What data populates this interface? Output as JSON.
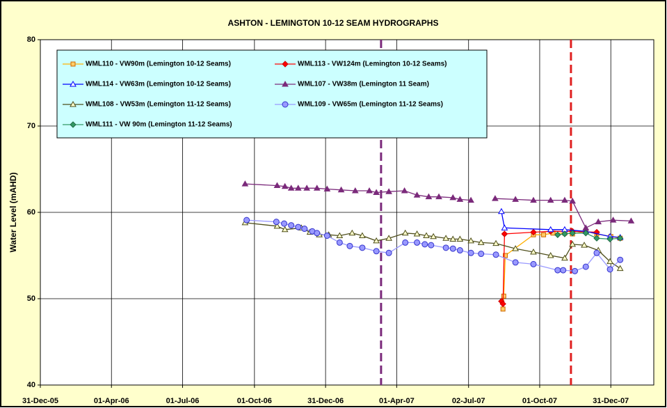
{
  "chart_data": {
    "type": "line",
    "title": "ASHTON - LEMINGTON 10-12 SEAM HYDROGRAPHS",
    "y_label": "Water Level (mAHD)",
    "xlim": [
      "2005-12-31",
      "2008-02-24"
    ],
    "xticks": [
      {
        "value": "2005-12-31",
        "label": "31-Dec-05"
      },
      {
        "value": "2006-04-01",
        "label": "01-Apr-06"
      },
      {
        "value": "2006-07-01",
        "label": "01-Jul-06"
      },
      {
        "value": "2006-10-01",
        "label": "01-Oct-06"
      },
      {
        "value": "2006-12-31",
        "label": "31-Dec-06"
      },
      {
        "value": "2007-04-01",
        "label": "01-Apr-07"
      },
      {
        "value": "2007-07-02",
        "label": "02-Jul-07"
      },
      {
        "value": "2007-10-01",
        "label": "01-Oct-07"
      },
      {
        "value": "2007-12-31",
        "label": "31-Dec-07"
      }
    ],
    "ylim": [
      40,
      80
    ],
    "yticks": [
      40,
      50,
      60,
      70,
      80
    ],
    "grid": true,
    "reference_lines": [
      {
        "x": "2007-03-12",
        "color": "#7b2a7b"
      },
      {
        "x": "2007-11-10",
        "color": "#e02020"
      }
    ],
    "series": [
      {
        "name": "WML110 - VW90m (Lemington 10-12 Seams)",
        "color": "#ffb000",
        "marker": "square",
        "marker_fill": "#ffcc66",
        "marker_stroke": "#cc6600",
        "x": [
          "2007-08-15",
          "2007-08-16",
          "2007-08-18",
          "2007-09-23",
          "2007-10-06",
          "2007-10-18",
          "2007-11-02",
          "2007-11-12",
          "2007-11-29",
          "2007-12-13",
          "2007-12-31",
          "2008-01-12"
        ],
        "values": [
          48.8,
          50.3,
          55.0,
          57.4,
          57.4,
          57.6,
          57.6,
          57.5,
          57.8,
          57.5,
          57.2,
          57.0
        ]
      },
      {
        "name": "WML113 - VW124m (Lemington 10-12 Seams)",
        "color": "#ff0000",
        "marker": "diamond",
        "marker_fill": "#ff0000",
        "marker_stroke": "#cc0000",
        "x": [
          "2007-08-13",
          "2007-08-15",
          "2007-08-17",
          "2007-09-23",
          "2007-10-15",
          "2007-11-12",
          "2007-12-13"
        ],
        "values": [
          49.7,
          49.4,
          57.5,
          57.7,
          57.8,
          57.8,
          57.7
        ]
      },
      {
        "name": "WML114 - VW63m (Lemington 10-12 Seams)",
        "color": "#0000ff",
        "marker": "triangle-open",
        "marker_fill": "#ffffff",
        "marker_stroke": "#0000ff",
        "x": [
          "2007-08-13",
          "2007-08-17",
          "2007-10-15",
          "2007-11-02",
          "2007-11-29",
          "2007-12-30",
          "2008-01-12"
        ],
        "values": [
          60.1,
          58.2,
          58.0,
          58.0,
          57.8,
          57.2,
          57.1
        ]
      },
      {
        "name": "WML107 - VW38m (Lemington 11 Seam)",
        "color": "#7b2a7b",
        "marker": "triangle",
        "marker_fill": "#7b2a7b",
        "marker_stroke": "#7b2a7b",
        "x": [
          "2006-09-19",
          "2006-10-30",
          "2006-11-09",
          "2006-11-17",
          "2006-11-26",
          "2006-12-07",
          "2006-12-20",
          "2007-01-02",
          "2007-01-20",
          "2007-02-07",
          "2007-02-25",
          "2007-03-06",
          "2007-03-22",
          "2007-04-11",
          "2007-04-27",
          "2007-05-12",
          "2007-05-25",
          "2007-06-12",
          "2007-06-21",
          "2007-07-05",
          "2007-07-20",
          "2007-08-05",
          "2007-08-31",
          "2007-09-23",
          "2007-10-15",
          "2007-11-02",
          "2007-11-12",
          "2007-11-29",
          "2007-12-15",
          "2008-01-03",
          "2008-01-26"
        ],
        "values": [
          63.3,
          63.1,
          63.0,
          62.8,
          62.8,
          62.8,
          62.8,
          62.7,
          62.6,
          62.5,
          62.5,
          62.3,
          62.4,
          62.5,
          62.0,
          61.8,
          61.8,
          61.7,
          61.5,
          61.4,
          null,
          61.6,
          61.5,
          61.4,
          61.4,
          61.4,
          61.3,
          58.2,
          58.9,
          59.1,
          59.0
        ]
      },
      {
        "name": "WML108 - VW53m (Lemington 11-12 Seams)",
        "color": "#4d4d1a",
        "marker": "triangle-open",
        "marker_fill": "#ffffcc",
        "marker_stroke": "#4d4d1a",
        "x": [
          "2006-09-19",
          "2006-10-30",
          "2006-11-09",
          "2006-11-30",
          "2006-12-11",
          "2006-12-23",
          "2007-01-04",
          "2007-01-18",
          "2007-02-03",
          "2007-02-16",
          "2007-03-06",
          "2007-03-22",
          "2007-04-12",
          "2007-04-27",
          "2007-05-09",
          "2007-05-18",
          "2007-06-03",
          "2007-06-12",
          "2007-06-21",
          "2007-07-05",
          "2007-07-18",
          "2007-08-06",
          "2007-08-31",
          "2007-09-23",
          "2007-10-15",
          "2007-11-02",
          "2007-11-12",
          "2007-11-27",
          "2007-12-15",
          "2007-12-30",
          "2008-01-12"
        ],
        "values": [
          58.8,
          58.4,
          58.0,
          58.2,
          57.7,
          57.4,
          57.4,
          57.3,
          57.6,
          57.3,
          56.7,
          57.0,
          57.6,
          57.5,
          57.3,
          57.2,
          57.0,
          56.9,
          56.9,
          56.7,
          56.5,
          56.4,
          55.8,
          55.4,
          55.0,
          54.7,
          56.3,
          56.2,
          55.6,
          54.3,
          53.5
        ]
      },
      {
        "name": "WML109 - VW65m (Lemington 11-12 Seams)",
        "color": "#9999ff",
        "marker": "circle",
        "marker_fill": "#9999ff",
        "marker_stroke": "#3333cc",
        "x": [
          "2006-09-21",
          "2006-10-29",
          "2006-11-08",
          "2006-11-17",
          "2006-11-26",
          "2006-12-04",
          "2006-12-14",
          "2006-12-20",
          "2007-01-02",
          "2007-01-18",
          "2007-01-31",
          "2007-02-16",
          "2007-03-06",
          "2007-03-22",
          "2007-04-12",
          "2007-04-27",
          "2007-05-07",
          "2007-05-15",
          "2007-06-03",
          "2007-06-12",
          "2007-06-21",
          "2007-07-05",
          "2007-07-18",
          "2007-08-06",
          "2007-08-31",
          "2007-09-23",
          "2007-10-24",
          "2007-10-31",
          "2007-11-15",
          "2007-11-29",
          "2007-12-13",
          "2007-12-30",
          "2008-01-12"
        ],
        "values": [
          59.1,
          58.9,
          58.7,
          58.5,
          58.3,
          58.1,
          57.8,
          57.6,
          57.3,
          56.5,
          56.1,
          55.9,
          55.5,
          55.3,
          56.5,
          56.5,
          56.3,
          56.2,
          55.9,
          55.8,
          55.6,
          55.3,
          55.2,
          55.1,
          54.2,
          54.0,
          53.3,
          53.3,
          53.2,
          53.7,
          55.3,
          53.4,
          54.5
        ]
      },
      {
        "name": "WML111 - VW 90m (Lemington 11-12 Seams)",
        "color": "#339966",
        "marker": "diamond",
        "marker_fill": "#339966",
        "marker_stroke": "#1f6b44",
        "x": [
          "2007-10-24",
          "2007-11-02",
          "2007-11-12",
          "2007-11-29",
          "2007-12-13",
          "2007-12-30",
          "2008-01-12"
        ],
        "values": [
          57.4,
          57.5,
          57.6,
          57.6,
          57.0,
          56.9,
          57.0
        ]
      }
    ]
  }
}
